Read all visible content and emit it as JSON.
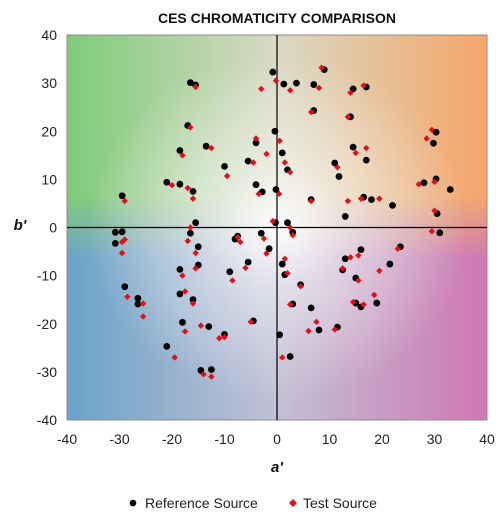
{
  "chart_data": {
    "type": "scatter",
    "title": "CES CHROMATICITY COMPARISON",
    "xlabel": "a'",
    "ylabel": "b'",
    "xlim": [
      -40,
      40
    ],
    "ylim": [
      -40,
      40
    ],
    "xticks": [
      -40,
      -30,
      -20,
      -10,
      0,
      10,
      20,
      30,
      40
    ],
    "yticks": [
      -40,
      -30,
      -20,
      -10,
      0,
      10,
      20,
      30,
      40
    ],
    "grid": false,
    "legend_position": "bottom",
    "background": "a-b colour-space gradient (green upper-left, orange upper-right, magenta lower-right, blue lower-left)",
    "series": [
      {
        "name": "Reference Source",
        "marker": "circle",
        "color": "#000000",
        "points": [
          [
            -16.5,
            30.1
          ],
          [
            -15.5,
            29.6
          ],
          [
            -0.8,
            32.3
          ],
          [
            1.3,
            29.8
          ],
          [
            3.7,
            30.0
          ],
          [
            9.0,
            32.8
          ],
          [
            14.5,
            28.8
          ],
          [
            17.0,
            29.2
          ],
          [
            -17.0,
            21.2
          ],
          [
            -13.5,
            16.9
          ],
          [
            -10.0,
            12.7
          ],
          [
            -18.5,
            16.0
          ],
          [
            -21.0,
            9.4
          ],
          [
            -18.5,
            9.0
          ],
          [
            -16.0,
            7.5
          ],
          [
            -5.5,
            13.8
          ],
          [
            -4.0,
            17.6
          ],
          [
            -0.4,
            20.0
          ],
          [
            1.0,
            15.5
          ],
          [
            2.0,
            12.0
          ],
          [
            7.0,
            24.3
          ],
          [
            7.0,
            29.7
          ],
          [
            14.0,
            23.0
          ],
          [
            14.5,
            16.7
          ],
          [
            17.0,
            14.0
          ],
          [
            11.0,
            13.4
          ],
          [
            11.8,
            10.6
          ],
          [
            -4.0,
            8.9
          ],
          [
            -2.8,
            7.4
          ],
          [
            -0.2,
            7.9
          ],
          [
            6.5,
            5.8
          ],
          [
            18.0,
            5.8
          ],
          [
            22.0,
            4.6
          ],
          [
            13.0,
            2.3
          ],
          [
            16.5,
            6.3
          ],
          [
            28.0,
            9.3
          ],
          [
            30.3,
            10.1
          ],
          [
            33.0,
            7.9
          ],
          [
            29.8,
            17.5
          ],
          [
            30.3,
            19.8
          ],
          [
            -29.5,
            6.6
          ],
          [
            -30.8,
            -1.0
          ],
          [
            -29.5,
            -0.9
          ],
          [
            -30.8,
            -3.3
          ],
          [
            -15.5,
            1.0
          ],
          [
            -16.5,
            -1.2
          ],
          [
            -15.0,
            -4.0
          ],
          [
            -8.0,
            -2.4
          ],
          [
            -7.5,
            -1.8
          ],
          [
            -3.0,
            -1.2
          ],
          [
            -0.3,
            1.0
          ],
          [
            2.0,
            1.0
          ],
          [
            3.0,
            -1.0
          ],
          [
            -1.5,
            -4.4
          ],
          [
            -5.5,
            -7.2
          ],
          [
            -9.0,
            -9.2
          ],
          [
            1.0,
            -7.6
          ],
          [
            1.5,
            -9.8
          ],
          [
            4.5,
            -11.9
          ],
          [
            13.0,
            -6.5
          ],
          [
            16.0,
            -4.6
          ],
          [
            23.5,
            -4.0
          ],
          [
            21.5,
            -7.6
          ],
          [
            15.0,
            -10.5
          ],
          [
            12.5,
            -8.8
          ],
          [
            31.0,
            -1.1
          ],
          [
            30.5,
            2.9
          ],
          [
            -29.0,
            -12.3
          ],
          [
            -26.5,
            -14.7
          ],
          [
            -26.5,
            -15.9
          ],
          [
            -18.5,
            -8.7
          ],
          [
            -18.5,
            -13.8
          ],
          [
            -16.0,
            -15.0
          ],
          [
            -18.0,
            -19.7
          ],
          [
            -13.0,
            -20.6
          ],
          [
            -10.0,
            -22.2
          ],
          [
            -21.0,
            -24.7
          ],
          [
            -14.5,
            -29.7
          ],
          [
            -12.5,
            -29.5
          ],
          [
            -4.5,
            -19.4
          ],
          [
            0.5,
            -22.3
          ],
          [
            3.0,
            -15.9
          ],
          [
            6.5,
            -16.7
          ],
          [
            8.0,
            -21.3
          ],
          [
            11.5,
            -20.7
          ],
          [
            15.0,
            -15.7
          ],
          [
            16.0,
            -16.5
          ],
          [
            19.0,
            -15.7
          ],
          [
            2.5,
            -26.8
          ],
          [
            -15.0,
            -7.8
          ]
        ]
      },
      {
        "name": "Test Source",
        "marker": "diamond",
        "color": "#e0101a",
        "points": [
          [
            -15.5,
            29.2
          ],
          [
            -0.2,
            30.5
          ],
          [
            -3.0,
            28.8
          ],
          [
            2.5,
            28.5
          ],
          [
            8.5,
            33.2
          ],
          [
            14.0,
            28.0
          ],
          [
            16.5,
            29.5
          ],
          [
            -16.5,
            20.8
          ],
          [
            -12.5,
            16.5
          ],
          [
            -9.5,
            10.7
          ],
          [
            -18.0,
            15.0
          ],
          [
            -20.0,
            8.8
          ],
          [
            -17.0,
            8.2
          ],
          [
            -16.0,
            6.0
          ],
          [
            -4.5,
            13.5
          ],
          [
            -4.0,
            18.5
          ],
          [
            0.5,
            18.0
          ],
          [
            1.5,
            13.5
          ],
          [
            2.5,
            11.5
          ],
          [
            6.5,
            24.0
          ],
          [
            8.0,
            29.0
          ],
          [
            13.5,
            23.0
          ],
          [
            15.0,
            15.5
          ],
          [
            17.0,
            16.5
          ],
          [
            11.5,
            12.5
          ],
          [
            -3.5,
            7.0
          ],
          [
            -2.0,
            15.3
          ],
          [
            0.4,
            7.0
          ],
          [
            6.5,
            5.5
          ],
          [
            19.5,
            6.0
          ],
          [
            13.5,
            5.5
          ],
          [
            16.0,
            6.0
          ],
          [
            27.0,
            9.0
          ],
          [
            30.0,
            9.5
          ],
          [
            28.5,
            18.5
          ],
          [
            29.5,
            20.3
          ],
          [
            -29.0,
            5.5
          ],
          [
            -29.5,
            -3.0
          ],
          [
            -29.0,
            -2.5
          ],
          [
            -29.5,
            -5.3
          ],
          [
            -16.5,
            0.0
          ],
          [
            -17.0,
            -2.8
          ],
          [
            -15.5,
            -5.3
          ],
          [
            -7.5,
            -2.0
          ],
          [
            -7.0,
            -3.0
          ],
          [
            -2.5,
            -2.3
          ],
          [
            -0.8,
            1.3
          ],
          [
            2.5,
            0.0
          ],
          [
            3.0,
            -1.6
          ],
          [
            -2.0,
            -5.4
          ],
          [
            -6.0,
            -8.4
          ],
          [
            -8.5,
            -11.0
          ],
          [
            1.5,
            -6.5
          ],
          [
            2.0,
            -9.5
          ],
          [
            4.5,
            -12.2
          ],
          [
            14.0,
            -6.2
          ],
          [
            15.5,
            -5.8
          ],
          [
            23.0,
            -4.4
          ],
          [
            19.5,
            -9.0
          ],
          [
            15.5,
            -11.0
          ],
          [
            12.5,
            -8.5
          ],
          [
            29.5,
            -0.8
          ],
          [
            30.0,
            3.5
          ],
          [
            -28.5,
            -14.4
          ],
          [
            -25.5,
            -15.8
          ],
          [
            -25.5,
            -18.5
          ],
          [
            -18.0,
            -10.0
          ],
          [
            -17.5,
            -13.3
          ],
          [
            -16.0,
            -15.8
          ],
          [
            -17.5,
            -21.6
          ],
          [
            -14.5,
            -20.4
          ],
          [
            -11.0,
            -23.0
          ],
          [
            -19.5,
            -27.0
          ],
          [
            -14.0,
            -30.5
          ],
          [
            -12.5,
            -31.0
          ],
          [
            -5.0,
            -19.6
          ],
          [
            1.0,
            -27.0
          ],
          [
            2.5,
            -16.0
          ],
          [
            6.0,
            -21.5
          ],
          [
            7.5,
            -19.6
          ],
          [
            11.0,
            -21.2
          ],
          [
            14.5,
            -15.5
          ],
          [
            16.5,
            -16.0
          ],
          [
            18.5,
            -14.0
          ],
          [
            -15.5,
            -8.5
          ],
          [
            -10.0,
            -22.8
          ]
        ]
      }
    ]
  }
}
